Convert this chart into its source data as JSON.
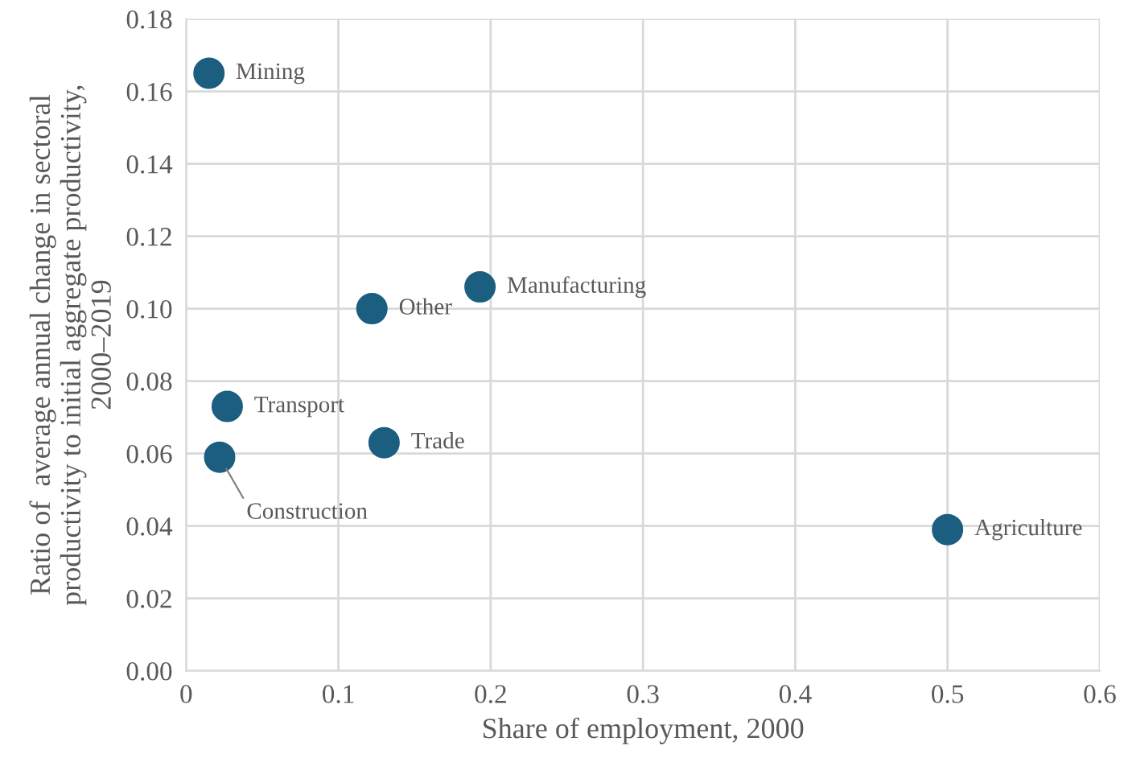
{
  "chart_data": {
    "type": "scatter",
    "xlabel": "Share of employment, 2000",
    "ylabel": "Ratio of  average annual change in sectoral\nproductivity to initial aggregate productivity,\n2000–2019",
    "x": [
      0.015,
      0.193,
      0.122,
      0.027,
      0.022,
      0.13,
      0.5
    ],
    "series": [
      {
        "color": "#1b5e80",
        "values": [
          0.165,
          0.106,
          0.1,
          0.073,
          0.059,
          0.063,
          0.039
        ]
      }
    ],
    "annotations": [
      {
        "text": "Mining",
        "x": 0.015,
        "y": 0.165
      },
      {
        "text": "Manufacturing",
        "x": 0.193,
        "y": 0.106
      },
      {
        "text": "Other",
        "x": 0.122,
        "y": 0.1
      },
      {
        "text": "Transport",
        "x": 0.027,
        "y": 0.073
      },
      {
        "text": "Construction",
        "x": 0.022,
        "y": 0.059
      },
      {
        "text": "Trade",
        "x": 0.13,
        "y": 0.063
      },
      {
        "text": "Agriculture",
        "x": 0.5,
        "y": 0.039
      }
    ],
    "xlim": [
      0,
      0.6
    ],
    "xticks": [
      0,
      0.1,
      0.2,
      0.3,
      0.4,
      0.5,
      0.6
    ],
    "ylim": [
      0,
      0.18
    ],
    "yticks": [
      {
        "value": 0,
        "label": "0.00"
      },
      {
        "value": 0.02,
        "label": "0.02"
      },
      {
        "value": 0.04,
        "label": "0.04"
      },
      {
        "value": 0.06,
        "label": "0.06"
      },
      {
        "value": 0.08,
        "label": "0.08"
      },
      {
        "value": 0.1,
        "label": "0.10"
      },
      {
        "value": 0.12,
        "label": "0.12"
      },
      {
        "value": 0.14,
        "label": "0.14"
      },
      {
        "value": 0.16,
        "label": "0.16"
      },
      {
        "value": 0.18,
        "label": "0.18"
      }
    ],
    "grid": true,
    "marker": "circle"
  }
}
